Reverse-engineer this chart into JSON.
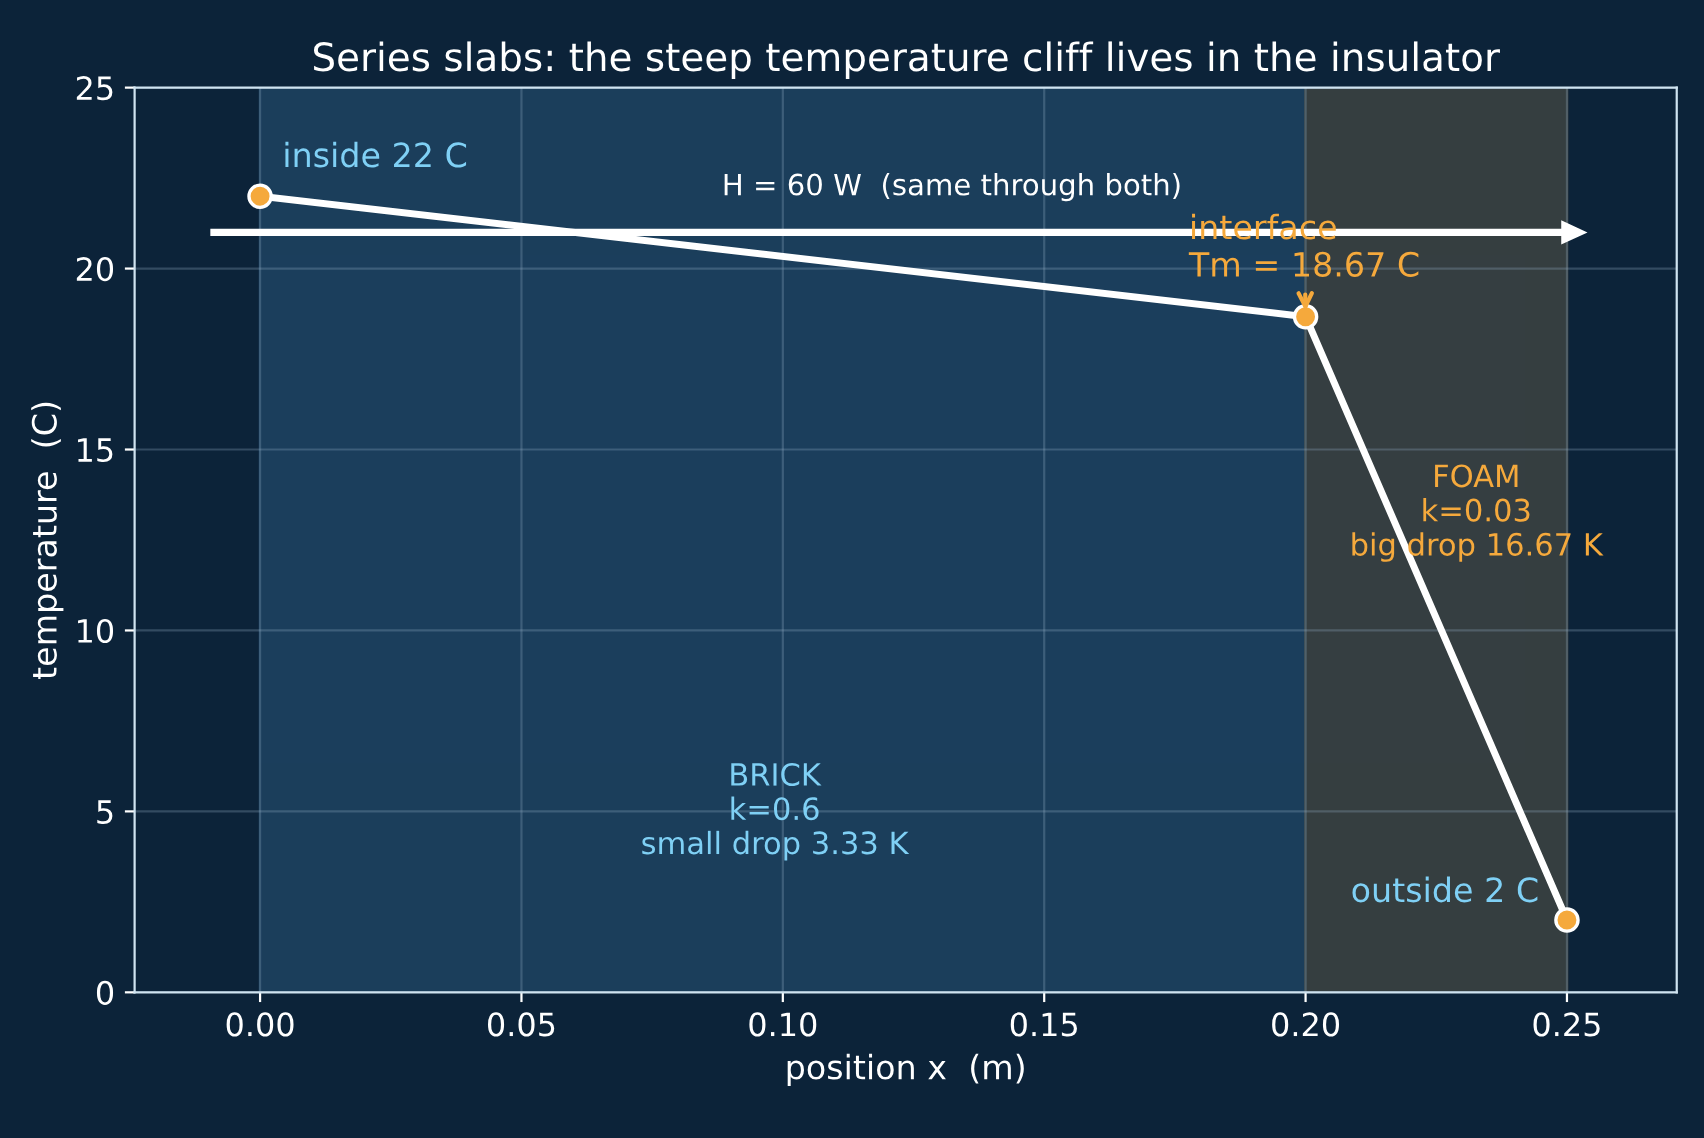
{
  "chart_data": {
    "type": "line",
    "title": "Series slabs: the steep temperature cliff lives in the insulator",
    "xlabel": "position x  (m)",
    "ylabel": "temperature  (C)",
    "x": [
      0,
      0.2,
      0.25
    ],
    "series": [
      {
        "color": "#ffffff",
        "values": [
          22,
          18.67,
          2
        ]
      }
    ],
    "marker": "circle",
    "line_style": "solid",
    "xlim": [
      -0.024,
      0.271
    ],
    "ylim": [
      0,
      25
    ],
    "xticks": [
      {
        "value": 0,
        "label": "0.00"
      },
      {
        "value": 0.05,
        "label": "0.05"
      },
      {
        "value": 0.1,
        "label": "0.10"
      },
      {
        "value": 0.15,
        "label": "0.15"
      },
      {
        "value": 0.2,
        "label": "0.20"
      },
      {
        "value": 0.25,
        "label": "0.25"
      }
    ],
    "yticks": [
      0,
      5,
      10,
      15,
      20,
      25
    ],
    "grid": true,
    "bands": [
      {
        "axis": "x",
        "from": 0,
        "to": 0.2,
        "color": "#1d4260"
      },
      {
        "axis": "x",
        "from": 0.2,
        "to": 0.25,
        "color": "#3a4242"
      }
    ],
    "annotations": [
      {
        "text": "inside 22 C",
        "x": 0,
        "y": 22
      },
      {
        "text": "interface\nTm = 18.67 C",
        "x": 0.2,
        "y": 18.67
      },
      {
        "text": "outside 2 C",
        "x": 0.25,
        "y": 2
      },
      "H = 60 W  (same through both)",
      "BRICK\nk=0.6\nsmall drop 3.33 K",
      "FOAM\nk=0.03\nbig drop 16.67 K"
    ]
  }
}
